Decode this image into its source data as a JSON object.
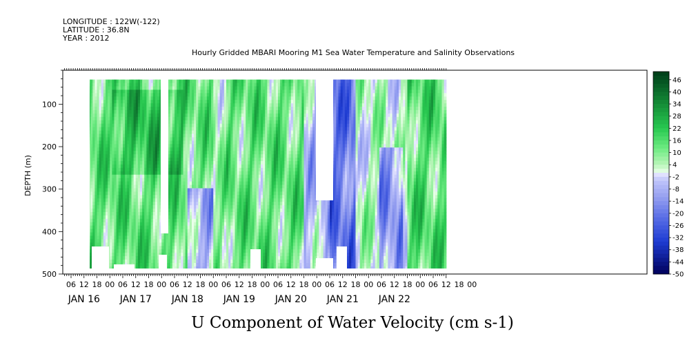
{
  "header": {
    "longitude": "LONGITUDE : 122W(-122)",
    "latitude": "LATITUDE : 36.8N",
    "year": "YEAR : 2012",
    "title": "Hourly Gridded MBARI Mooring M1 Sea Water Temperature and Salinity Observations"
  },
  "chart_data": {
    "type": "heatmap",
    "title": "Hourly Gridded MBARI Mooring M1 Sea Water Temperature and Salinity Observations",
    "variable_title": "U Component of Water Velocity (cm s-1)",
    "ylabel": "DEPTH (m)",
    "ylim": [
      500,
      20
    ],
    "y_inverted": true,
    "y_ticks": [
      100,
      200,
      300,
      400,
      500
    ],
    "x_ticks_hours": [
      "06",
      "12",
      "18",
      "00",
      "06",
      "12",
      "18",
      "00",
      "06",
      "12",
      "18",
      "00",
      "06",
      "12",
      "18",
      "00",
      "06",
      "12",
      "18",
      "00",
      "06",
      "12",
      "18",
      "00",
      "06",
      "12",
      "18",
      "00",
      "06",
      "12",
      "18",
      "00"
    ],
    "x_days": [
      "JAN 16",
      "JAN 17",
      "JAN 18",
      "JAN 19",
      "JAN 20",
      "JAN 21",
      "JAN 22"
    ],
    "colorbar_ticks": [
      "46",
      "40",
      "34",
      "28",
      "22",
      "16",
      "10",
      "4",
      "-2",
      "-8",
      "-14",
      "-20",
      "-26",
      "-32",
      "-38",
      "-44",
      "-50"
    ],
    "colorbar_range": [
      -50,
      50
    ],
    "colors": {
      "zero": "#f0fff0",
      "positive_strong": "#003d1a",
      "negative_strong": "#00005a",
      "missing": "#ffffff"
    },
    "region_summary": [
      {
        "period": "JAN 16 10h - JAN 18 12h",
        "dominant": "positive",
        "approx_value": 14
      },
      {
        "period": "JAN 18 12h - JAN 19 00h",
        "dominant": "mixed, negative below 300 m",
        "approx_value": -6
      },
      {
        "period": "JAN 19 06h - JAN 20 18h",
        "dominant": "positive",
        "approx_value": 12
      },
      {
        "period": "JAN 20 18h - JAN 21 18h",
        "dominant": "negative",
        "approx_value": -18
      },
      {
        "period": "JAN 21 18h - JAN 22 18h",
        "dominant": "mixed",
        "approx_value": 2
      },
      {
        "period": "JAN 22 18h - JAN 23 00h",
        "dominant": "positive",
        "approx_value": 16
      }
    ]
  }
}
